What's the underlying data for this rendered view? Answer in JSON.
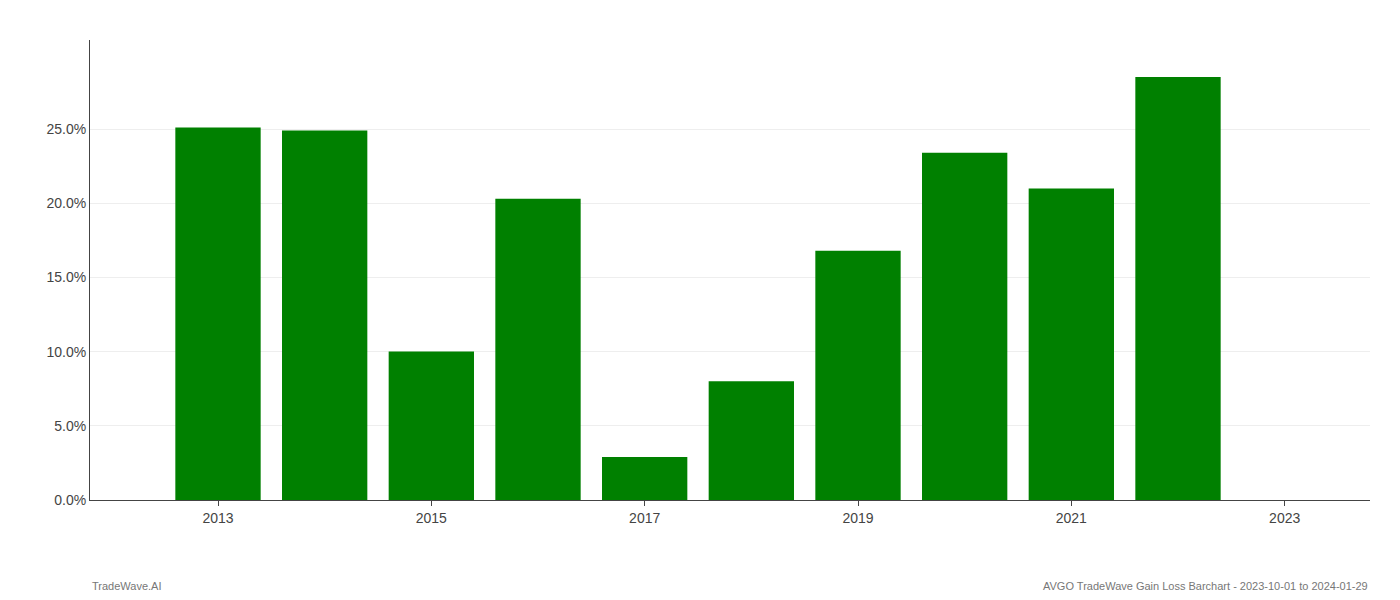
{
  "chart_data": {
    "type": "bar",
    "x": [
      2013,
      2014,
      2015,
      2016,
      2017,
      2018,
      2019,
      2020,
      2021,
      2022
    ],
    "values": [
      0.251,
      0.249,
      0.1,
      0.203,
      0.029,
      0.08,
      0.168,
      0.234,
      0.21,
      0.285
    ],
    "color": "#008000",
    "xlim": [
      2011.8,
      2023.8
    ],
    "xticks": [
      2013,
      2015,
      2017,
      2019,
      2021,
      2023
    ],
    "ylim": [
      0,
      0.31
    ],
    "yticks": [
      {
        "value": 0.0,
        "label": "0.0%"
      },
      {
        "value": 0.05,
        "label": "5.0%"
      },
      {
        "value": 0.1,
        "label": "10.0%"
      },
      {
        "value": 0.15,
        "label": "15.0%"
      },
      {
        "value": 0.2,
        "label": "20.0%"
      },
      {
        "value": 0.25,
        "label": "25.0%"
      }
    ],
    "grid": "y",
    "annotations": [
      "TradeWave.AI",
      "AVGO TradeWave Gain Loss Barchart - 2023-10-01 to 2024-01-29"
    ]
  }
}
